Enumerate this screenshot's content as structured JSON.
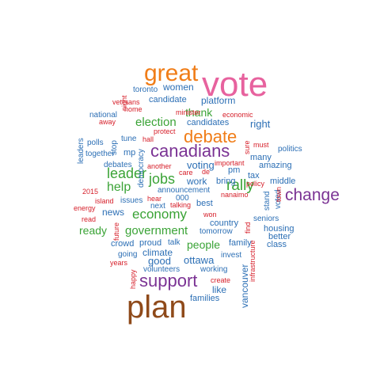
{
  "colors": {
    "pink": "#e7629e",
    "orange": "#f07d18",
    "purple": "#7b3394",
    "green": "#3aa336",
    "blue": "#2c6fb5",
    "red": "#d6202b",
    "brown": "#8f4a1a"
  },
  "words": [
    {
      "text": "vote",
      "color": "pink"
    },
    {
      "text": "great",
      "color": "orange"
    },
    {
      "text": "plan",
      "color": "brown"
    },
    {
      "text": "debate",
      "color": "orange"
    },
    {
      "text": "canadians",
      "color": "purple"
    },
    {
      "text": "support",
      "color": "purple"
    },
    {
      "text": "change",
      "color": "purple"
    },
    {
      "text": "rally",
      "color": "green"
    },
    {
      "text": "leader",
      "color": "green"
    },
    {
      "text": "jobs",
      "color": "green"
    },
    {
      "text": "economy",
      "color": "green"
    },
    {
      "text": "election",
      "color": "green"
    },
    {
      "text": "government",
      "color": "green"
    },
    {
      "text": "help",
      "color": "green"
    },
    {
      "text": "thank",
      "color": "green"
    },
    {
      "text": "people",
      "color": "green"
    },
    {
      "text": "ready",
      "color": "green"
    },
    {
      "text": "women",
      "color": "blue"
    },
    {
      "text": "toronto",
      "color": "blue"
    },
    {
      "text": "candidate",
      "color": "blue"
    },
    {
      "text": "platform",
      "color": "blue"
    },
    {
      "text": "right",
      "color": "blue"
    },
    {
      "text": "voting",
      "color": "blue"
    },
    {
      "text": "work",
      "color": "blue"
    },
    {
      "text": "bring",
      "color": "blue"
    },
    {
      "text": "news",
      "color": "blue"
    },
    {
      "text": "climate",
      "color": "blue"
    },
    {
      "text": "good",
      "color": "blue"
    },
    {
      "text": "ottawa",
      "color": "blue"
    },
    {
      "text": "like",
      "color": "blue"
    },
    {
      "text": "families",
      "color": "blue"
    },
    {
      "text": "candidates",
      "color": "blue"
    },
    {
      "text": "national",
      "color": "blue"
    },
    {
      "text": "polls",
      "color": "blue"
    },
    {
      "text": "together",
      "color": "blue"
    },
    {
      "text": "debates",
      "color": "blue"
    },
    {
      "text": "mp",
      "color": "blue"
    },
    {
      "text": "tune",
      "color": "blue"
    },
    {
      "text": "stop",
      "color": "blue"
    },
    {
      "text": "leaders",
      "color": "blue"
    },
    {
      "text": "democracy",
      "color": "blue"
    },
    {
      "text": "issues",
      "color": "blue"
    },
    {
      "text": "next",
      "color": "blue"
    },
    {
      "text": "000",
      "color": "blue"
    },
    {
      "text": "announcement",
      "color": "blue"
    },
    {
      "text": "best",
      "color": "blue"
    },
    {
      "text": "country",
      "color": "blue"
    },
    {
      "text": "tomorrow",
      "color": "blue"
    },
    {
      "text": "proud",
      "color": "blue"
    },
    {
      "text": "talk",
      "color": "blue"
    },
    {
      "text": "crowd",
      "color": "blue"
    },
    {
      "text": "going",
      "color": "blue"
    },
    {
      "text": "family",
      "color": "blue"
    },
    {
      "text": "invest",
      "color": "blue"
    },
    {
      "text": "volunteers",
      "color": "blue"
    },
    {
      "text": "working",
      "color": "blue"
    },
    {
      "text": "vancouver",
      "color": "blue"
    },
    {
      "text": "politics",
      "color": "blue"
    },
    {
      "text": "many",
      "color": "blue"
    },
    {
      "text": "amazing",
      "color": "blue"
    },
    {
      "text": "pm",
      "color": "blue"
    },
    {
      "text": "tax",
      "color": "blue"
    },
    {
      "text": "middle",
      "color": "blue"
    },
    {
      "text": "seniors",
      "color": "blue"
    },
    {
      "text": "housing",
      "color": "blue"
    },
    {
      "text": "better",
      "color": "blue"
    },
    {
      "text": "class",
      "color": "blue"
    },
    {
      "text": "stand",
      "color": "blue"
    },
    {
      "text": "voted",
      "color": "blue"
    },
    {
      "text": "veterans",
      "color": "red"
    },
    {
      "text": "home",
      "color": "red"
    },
    {
      "text": "night",
      "color": "red"
    },
    {
      "text": "away",
      "color": "red"
    },
    {
      "text": "minister",
      "color": "red"
    },
    {
      "text": "economic",
      "color": "red"
    },
    {
      "text": "protect",
      "color": "red"
    },
    {
      "text": "hall",
      "color": "red"
    },
    {
      "text": "important",
      "color": "red"
    },
    {
      "text": "sure",
      "color": "red"
    },
    {
      "text": "must",
      "color": "red"
    },
    {
      "text": "another",
      "color": "red"
    },
    {
      "text": "care",
      "color": "red"
    },
    {
      "text": "de",
      "color": "red"
    },
    {
      "text": "2015",
      "color": "red"
    },
    {
      "text": "island",
      "color": "red"
    },
    {
      "text": "energy",
      "color": "red"
    },
    {
      "text": "read",
      "color": "red"
    },
    {
      "text": "hear",
      "color": "red"
    },
    {
      "text": "talking",
      "color": "red"
    },
    {
      "text": "nanaimo",
      "color": "red"
    },
    {
      "text": "town",
      "color": "red"
    },
    {
      "text": "policy",
      "color": "red"
    },
    {
      "text": "won",
      "color": "red"
    },
    {
      "text": "find",
      "color": "red"
    },
    {
      "text": "future",
      "color": "red"
    },
    {
      "text": "years",
      "color": "red"
    },
    {
      "text": "happy",
      "color": "red"
    },
    {
      "text": "create",
      "color": "red"
    },
    {
      "text": "infrastructure",
      "color": "red"
    }
  ]
}
